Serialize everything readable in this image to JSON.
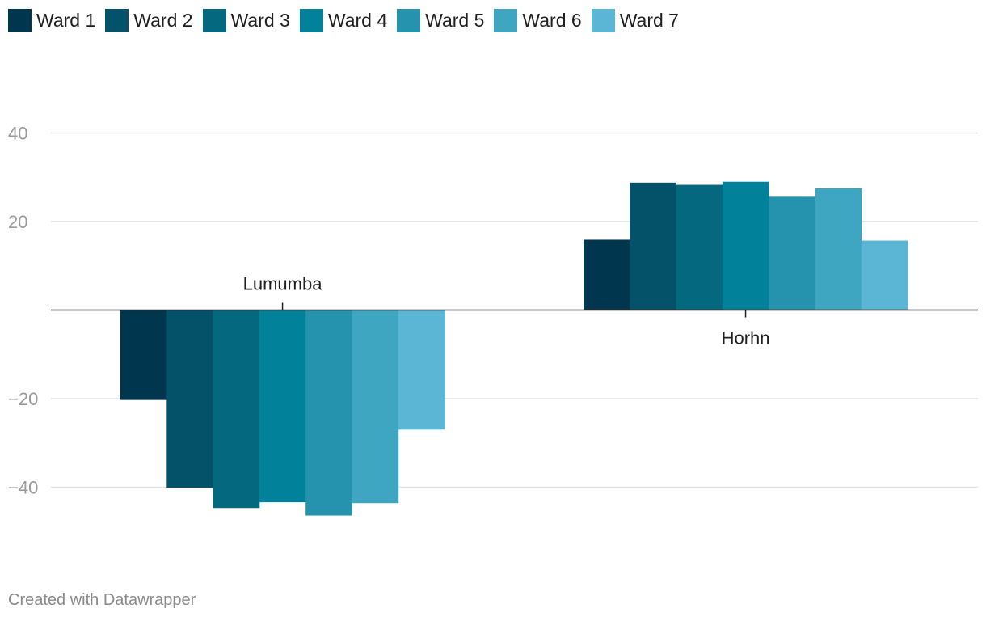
{
  "chart_data": {
    "type": "bar",
    "categories": [
      "Lumumba",
      "Horhn"
    ],
    "series": [
      {
        "name": "Ward 1",
        "color": "#01364f",
        "values": [
          -20.3,
          15.9
        ]
      },
      {
        "name": "Ward 2",
        "color": "#04516a",
        "values": [
          -40.1,
          28.8
        ]
      },
      {
        "name": "Ward 3",
        "color": "#04687e",
        "values": [
          -44.7,
          28.3
        ]
      },
      {
        "name": "Ward 4",
        "color": "#02829a",
        "values": [
          -43.4,
          29.0
        ]
      },
      {
        "name": "Ward 5",
        "color": "#2592ae",
        "values": [
          -46.4,
          25.6
        ]
      },
      {
        "name": "Ward 6",
        "color": "#3fa6c2",
        "values": [
          -43.6,
          27.5
        ]
      },
      {
        "name": "Ward 7",
        "color": "#5ab6d4",
        "values": [
          -27.0,
          15.7
        ]
      }
    ],
    "yticks": [
      40,
      20,
      -20,
      -40
    ],
    "ytick_labels": [
      "40",
      "20",
      "−20",
      "−40"
    ],
    "ylim": [
      -55,
      50
    ],
    "grid": true,
    "legend": "top-left"
  },
  "footer": "Created with Datawrapper"
}
